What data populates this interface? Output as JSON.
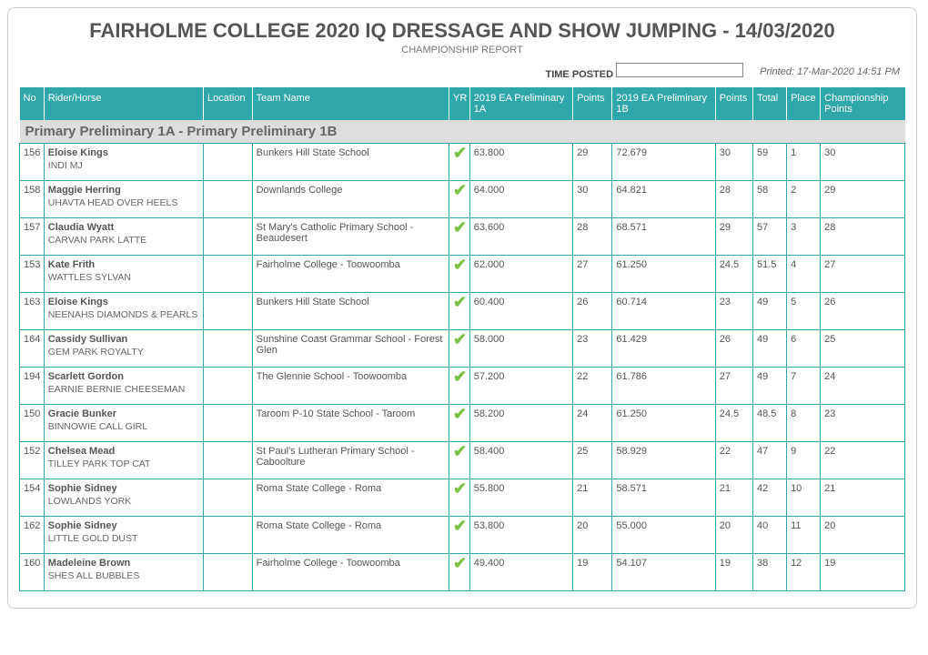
{
  "header": {
    "title": "FAIRHOLME COLLEGE 2020 IQ DRESSAGE AND SHOW JUMPING - 14/03/2020",
    "subtitle": "CHAMPIONSHIP REPORT",
    "time_posted_label": "TIME POSTED",
    "printed": "Printed: 17-Mar-2020 14:51 PM"
  },
  "columns": {
    "no": "No",
    "rider": "Rider/Horse",
    "location": "Location",
    "team": "Team Name",
    "yr": "YR",
    "prelim_1a": "2019 EA Preliminary 1A",
    "points1": "Points",
    "prelim_1b": "2019 EA Preliminary 1B",
    "points2": "Points",
    "total": "Total",
    "place": "Place",
    "champ": "Championship Points"
  },
  "section_title": "Primary Preliminary 1A - Primary Preliminary 1B",
  "rows": [
    {
      "no": "156",
      "rider": "Eloise Kings",
      "horse": "INDI MJ",
      "team": "Bunkers Hill State School",
      "p1a": "63.800",
      "pts1": "29",
      "p1b": "72.679",
      "pts2": "30",
      "total": "59",
      "place": "1",
      "champ": "30"
    },
    {
      "no": "158",
      "rider": "Maggie Herring",
      "horse": "UHAVTA HEAD OVER HEELS",
      "team": "Downlands College",
      "p1a": "64.000",
      "pts1": "30",
      "p1b": "64.821",
      "pts2": "28",
      "total": "58",
      "place": "2",
      "champ": "29"
    },
    {
      "no": "157",
      "rider": "Claudia Wyatt",
      "horse": "CARVAN PARK LATTE",
      "team": "St Mary's Catholic Primary School - Beaudesert",
      "p1a": "63.600",
      "pts1": "28",
      "p1b": "68.571",
      "pts2": "29",
      "total": "57",
      "place": "3",
      "champ": "28"
    },
    {
      "no": "153",
      "rider": "Kate Frith",
      "horse": "WATTLES SYLVAN",
      "team": "Fairholme College - Toowoomba",
      "p1a": "62.000",
      "pts1": "27",
      "p1b": "61.250",
      "pts2": "24.5",
      "total": "51.5",
      "place": "4",
      "champ": "27"
    },
    {
      "no": "163",
      "rider": "Eloise Kings",
      "horse": "NEENAHS DIAMONDS & PEARLS",
      "team": "Bunkers Hill State School",
      "p1a": "60.400",
      "pts1": "26",
      "p1b": "60.714",
      "pts2": "23",
      "total": "49",
      "place": "5",
      "champ": "26"
    },
    {
      "no": "164",
      "rider": "Cassidy Sullivan",
      "horse": "GEM PARK ROYALTY",
      "team": "Sunshine Coast Grammar School - Forest Glen",
      "p1a": "58.000",
      "pts1": "23",
      "p1b": "61.429",
      "pts2": "26",
      "total": "49",
      "place": "6",
      "champ": "25"
    },
    {
      "no": "194",
      "rider": "Scarlett Gordon",
      "horse": "EARNIE BERNIE CHEESEMAN",
      "team": "The Glennie School - Toowoomba",
      "p1a": "57.200",
      "pts1": "22",
      "p1b": "61.786",
      "pts2": "27",
      "total": "49",
      "place": "7",
      "champ": "24"
    },
    {
      "no": "150",
      "rider": "Gracie Bunker",
      "horse": "BINNOWIE CALL GIRL",
      "team": "Taroom P-10 State School - Taroom",
      "p1a": "58.200",
      "pts1": "24",
      "p1b": "61.250",
      "pts2": "24.5",
      "total": "48.5",
      "place": "8",
      "champ": "23"
    },
    {
      "no": "152",
      "rider": "Chelsea Mead",
      "horse": "TILLEY PARK TOP CAT",
      "team": "St Paul's Lutheran Primary School - Caboolture",
      "p1a": "58.400",
      "pts1": "25",
      "p1b": "58.929",
      "pts2": "22",
      "total": "47",
      "place": "9",
      "champ": "22"
    },
    {
      "no": "154",
      "rider": "Sophie Sidney",
      "horse": "LOWLANDS YORK",
      "team": "Roma State College - Roma",
      "p1a": "55.800",
      "pts1": "21",
      "p1b": "58.571",
      "pts2": "21",
      "total": "42",
      "place": "10",
      "champ": "21"
    },
    {
      "no": "162",
      "rider": "Sophie Sidney",
      "horse": "LITTLE GOLD DUST",
      "team": "Roma State College - Roma",
      "p1a": "53.800",
      "pts1": "20",
      "p1b": "55.000",
      "pts2": "20",
      "total": "40",
      "place": "11",
      "champ": "20"
    },
    {
      "no": "160",
      "rider": "Madeleine Brown",
      "horse": "SHES ALL BUBBLES",
      "team": "Fairholme College - Toowoomba",
      "p1a": "49.400",
      "pts1": "19",
      "p1b": "54.107",
      "pts2": "19",
      "total": "38",
      "place": "12",
      "champ": "19"
    }
  ]
}
